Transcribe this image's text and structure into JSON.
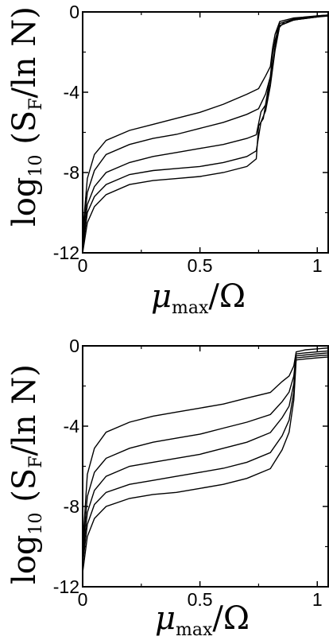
{
  "chart_data": [
    {
      "type": "line",
      "ylabel": "log10 (SF/ln N)",
      "xlabel": "μmax/Ω",
      "xlim": [
        0,
        1.05
      ],
      "ylim": [
        -12,
        0
      ],
      "xticks": [
        "0",
        "0.5",
        "1"
      ],
      "yticks": [
        "0",
        "-4",
        "-8",
        "-12"
      ],
      "grid": false,
      "series": [
        {
          "values": [
            [
              0.0,
              -11.0
            ],
            [
              0.02,
              -8.3
            ],
            [
              0.05,
              -7.1
            ],
            [
              0.1,
              -6.4
            ],
            [
              0.2,
              -5.9
            ],
            [
              0.3,
              -5.6
            ],
            [
              0.4,
              -5.3
            ],
            [
              0.5,
              -5.0
            ],
            [
              0.6,
              -4.6
            ],
            [
              0.7,
              -4.1
            ],
            [
              0.75,
              -3.7
            ],
            [
              0.78,
              -3.3
            ],
            [
              0.8,
              -2.6
            ],
            [
              0.81,
              -1.9
            ],
            [
              0.82,
              -1.0
            ],
            [
              0.84,
              -0.6
            ],
            [
              0.9,
              -0.3
            ],
            [
              1.0,
              -0.2
            ],
            [
              1.05,
              -0.15
            ]
          ]
        },
        {
          "values": [
            [
              0.0,
              -11.3
            ],
            [
              0.02,
              -9.0
            ],
            [
              0.05,
              -7.9
            ],
            [
              0.1,
              -7.1
            ],
            [
              0.2,
              -6.6
            ],
            [
              0.3,
              -6.3
            ],
            [
              0.4,
              -6.1
            ],
            [
              0.5,
              -5.8
            ],
            [
              0.6,
              -5.5
            ],
            [
              0.7,
              -5.1
            ],
            [
              0.75,
              -4.7
            ],
            [
              0.78,
              -4.2
            ],
            [
              0.8,
              -3.1
            ],
            [
              0.81,
              -2.2
            ],
            [
              0.82,
              -1.3
            ],
            [
              0.84,
              -0.7
            ],
            [
              0.9,
              -0.35
            ],
            [
              1.0,
              -0.2
            ],
            [
              1.05,
              -0.15
            ]
          ]
        },
        {
          "values": [
            [
              0.0,
              -11.6
            ],
            [
              0.02,
              -9.6
            ],
            [
              0.05,
              -8.7
            ],
            [
              0.1,
              -8.0
            ],
            [
              0.2,
              -7.5
            ],
            [
              0.3,
              -7.2
            ],
            [
              0.4,
              -7.0
            ],
            [
              0.5,
              -6.8
            ],
            [
              0.6,
              -6.6
            ],
            [
              0.7,
              -6.3
            ],
            [
              0.74,
              -6.0
            ],
            [
              0.76,
              -5.1
            ],
            [
              0.78,
              -4.5
            ],
            [
              0.8,
              -3.7
            ],
            [
              0.82,
              -1.7
            ],
            [
              0.84,
              -0.8
            ],
            [
              0.9,
              -0.4
            ],
            [
              1.0,
              -0.25
            ],
            [
              1.05,
              -0.15
            ]
          ]
        },
        {
          "values": [
            [
              0.0,
              -11.8
            ],
            [
              0.02,
              -10.0
            ],
            [
              0.05,
              -9.2
            ],
            [
              0.1,
              -8.6
            ],
            [
              0.2,
              -8.1
            ],
            [
              0.3,
              -7.9
            ],
            [
              0.4,
              -7.8
            ],
            [
              0.5,
              -7.7
            ],
            [
              0.6,
              -7.5
            ],
            [
              0.7,
              -7.2
            ],
            [
              0.74,
              -6.8
            ],
            [
              0.76,
              -5.6
            ],
            [
              0.78,
              -4.8
            ],
            [
              0.8,
              -3.8
            ],
            [
              0.82,
              -1.8
            ],
            [
              0.84,
              -0.8
            ],
            [
              0.9,
              -0.4
            ],
            [
              1.0,
              -0.25
            ],
            [
              1.05,
              -0.15
            ]
          ]
        },
        {
          "values": [
            [
              0.0,
              -12.0
            ],
            [
              0.02,
              -10.5
            ],
            [
              0.05,
              -9.7
            ],
            [
              0.1,
              -9.1
            ],
            [
              0.2,
              -8.6
            ],
            [
              0.3,
              -8.4
            ],
            [
              0.4,
              -8.3
            ],
            [
              0.5,
              -8.2
            ],
            [
              0.6,
              -8.0
            ],
            [
              0.7,
              -7.7
            ],
            [
              0.74,
              -7.2
            ],
            [
              0.75,
              -5.8
            ],
            [
              0.77,
              -5.2
            ],
            [
              0.79,
              -4.0
            ],
            [
              0.81,
              -2.5
            ],
            [
              0.83,
              -1.0
            ],
            [
              0.86,
              -0.5
            ],
            [
              0.95,
              -0.3
            ],
            [
              1.05,
              -0.2
            ]
          ]
        }
      ]
    },
    {
      "type": "line",
      "ylabel": "log10 (SF/ln N)",
      "xlabel": "μmax/Ω",
      "xlim": [
        0,
        1.05
      ],
      "ylim": [
        -12,
        0
      ],
      "xticks": [
        "0",
        "0.5",
        "1"
      ],
      "yticks": [
        "0",
        "-4",
        "-8",
        "-12"
      ],
      "grid": false,
      "series": [
        {
          "values": [
            [
              0.0,
              -10.0
            ],
            [
              0.02,
              -6.4
            ],
            [
              0.05,
              -5.1
            ],
            [
              0.1,
              -4.3
            ],
            [
              0.2,
              -3.8
            ],
            [
              0.3,
              -3.5
            ],
            [
              0.4,
              -3.3
            ],
            [
              0.5,
              -3.1
            ],
            [
              0.6,
              -2.9
            ],
            [
              0.7,
              -2.6
            ],
            [
              0.8,
              -2.2
            ],
            [
              0.85,
              -1.9
            ],
            [
              0.88,
              -1.5
            ],
            [
              0.9,
              -1.0
            ],
            [
              0.91,
              -0.3
            ],
            [
              0.95,
              -0.2
            ],
            [
              1.0,
              -0.15
            ],
            [
              1.05,
              -0.1
            ]
          ]
        },
        {
          "values": [
            [
              0.0,
              -10.3
            ],
            [
              0.02,
              -7.5
            ],
            [
              0.05,
              -6.3
            ],
            [
              0.1,
              -5.6
            ],
            [
              0.2,
              -5.1
            ],
            [
              0.3,
              -4.8
            ],
            [
              0.4,
              -4.6
            ],
            [
              0.5,
              -4.4
            ],
            [
              0.6,
              -4.1
            ],
            [
              0.7,
              -3.8
            ],
            [
              0.8,
              -3.3
            ],
            [
              0.85,
              -2.9
            ],
            [
              0.88,
              -2.3
            ],
            [
              0.9,
              -1.5
            ],
            [
              0.91,
              -0.4
            ],
            [
              0.95,
              -0.35
            ],
            [
              1.0,
              -0.3
            ],
            [
              1.05,
              -0.25
            ]
          ]
        },
        {
          "values": [
            [
              0.0,
              -10.6
            ],
            [
              0.02,
              -8.3
            ],
            [
              0.05,
              -7.2
            ],
            [
              0.1,
              -6.5
            ],
            [
              0.2,
              -6.0
            ],
            [
              0.3,
              -5.8
            ],
            [
              0.4,
              -5.6
            ],
            [
              0.5,
              -5.4
            ],
            [
              0.6,
              -5.1
            ],
            [
              0.7,
              -4.8
            ],
            [
              0.8,
              -4.2
            ],
            [
              0.85,
              -3.7
            ],
            [
              0.88,
              -3.0
            ],
            [
              0.9,
              -1.9
            ],
            [
              0.91,
              -0.5
            ],
            [
              0.95,
              -0.45
            ],
            [
              1.0,
              -0.4
            ],
            [
              1.05,
              -0.35
            ]
          ]
        },
        {
          "values": [
            [
              0.0,
              -10.9
            ],
            [
              0.02,
              -8.9
            ],
            [
              0.05,
              -7.9
            ],
            [
              0.1,
              -7.3
            ],
            [
              0.2,
              -6.9
            ],
            [
              0.3,
              -6.7
            ],
            [
              0.4,
              -6.5
            ],
            [
              0.5,
              -6.3
            ],
            [
              0.6,
              -6.1
            ],
            [
              0.7,
              -5.8
            ],
            [
              0.8,
              -5.2
            ],
            [
              0.85,
              -4.6
            ],
            [
              0.88,
              -3.7
            ],
            [
              0.9,
              -2.3
            ],
            [
              0.91,
              -0.6
            ],
            [
              0.95,
              -0.55
            ],
            [
              1.0,
              -0.5
            ],
            [
              1.05,
              -0.45
            ]
          ]
        },
        {
          "values": [
            [
              0.0,
              -11.3
            ],
            [
              0.02,
              -9.5
            ],
            [
              0.05,
              -8.6
            ],
            [
              0.1,
              -8.0
            ],
            [
              0.2,
              -7.6
            ],
            [
              0.3,
              -7.4
            ],
            [
              0.4,
              -7.3
            ],
            [
              0.5,
              -7.1
            ],
            [
              0.6,
              -6.9
            ],
            [
              0.7,
              -6.6
            ],
            [
              0.8,
              -6.0
            ],
            [
              0.85,
              -5.3
            ],
            [
              0.88,
              -4.3
            ],
            [
              0.9,
              -2.7
            ],
            [
              0.91,
              -0.7
            ],
            [
              0.95,
              -0.65
            ],
            [
              1.0,
              -0.6
            ],
            [
              1.05,
              -0.55
            ]
          ]
        }
      ]
    }
  ]
}
